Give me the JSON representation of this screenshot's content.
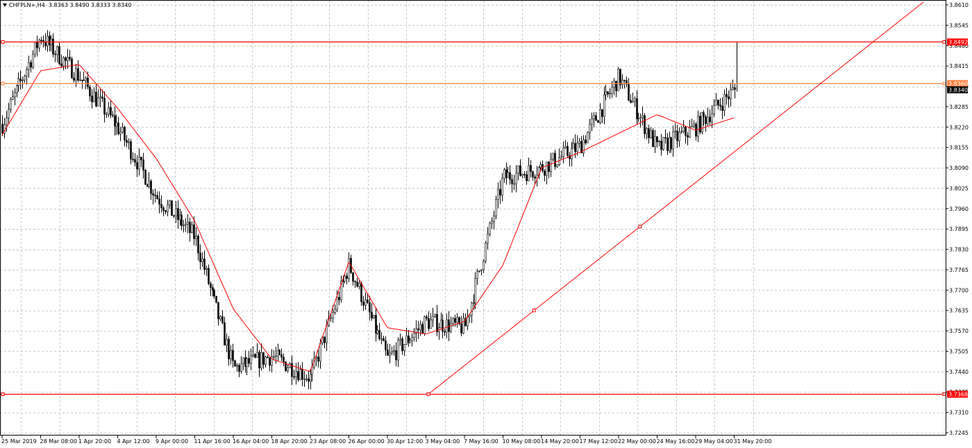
{
  "header": {
    "symbol": "CHFPLN+,H4",
    "ohlc": "3.8363 3.8490 3.8333 3.8340"
  },
  "colors": {
    "background": "#ffffff",
    "grid": "#c8c8c8",
    "candle": "#000000",
    "moving_average": "#ff0000",
    "level_line": "#ff0000",
    "level_line_orange": "#ff8040",
    "trendline": "#ff0000",
    "current_price_tag": "#000000"
  },
  "chart_data": {
    "type": "candlestick",
    "timeframe": "H4",
    "y_axis": {
      "range": [
        3.7245,
        3.861
      ],
      "ticks": [
        "3.8610",
        "3.8545",
        "3.8480",
        "3.8415",
        "3.8350",
        "3.8285",
        "3.8220",
        "3.8155",
        "3.8090",
        "3.8025",
        "3.7960",
        "3.7895",
        "3.7830",
        "3.7765",
        "3.7700",
        "3.7635",
        "3.7570",
        "3.7505",
        "3.7440",
        "3.7375",
        "3.7310",
        "3.7245"
      ]
    },
    "x_axis": {
      "labels": [
        "25 Mar 2019",
        "28 Mar 08:00",
        "1 Apr 20:00",
        "4 Apr 12:00",
        "9 Apr 00:00",
        "11 Apr 16:00",
        "16 Apr 04:00",
        "18 Apr 20:00",
        "23 Apr 08:00",
        "26 Apr 00:00",
        "30 Apr 12:00",
        "3 May 04:00",
        "7 May 16:00",
        "10 May 08:00",
        "14 May 20:00",
        "17 May 12:00",
        "22 May 00:00",
        "24 May 16:00",
        "29 May 04:00",
        "31 May 20:00"
      ]
    },
    "grid": true,
    "horizontal_levels": [
      {
        "price": 3.8492,
        "label": "3.8492",
        "color": "#ff0000"
      },
      {
        "price": 3.836,
        "label": "3.8360",
        "color": "#ff8040"
      },
      {
        "price": 3.7368,
        "label": "3.7368",
        "color": "#ff0000"
      }
    ],
    "current_price": {
      "price": 3.834,
      "label": "3.8340"
    },
    "trendline": {
      "from": {
        "date": "2 May 20:00",
        "price": 3.7368
      },
      "to": {
        "date": "after 31 May 20:00",
        "price": 3.861
      }
    },
    "moving_average_anchors": [
      {
        "date": "25 Mar 2019",
        "price": 3.8195
      },
      {
        "date": "28 Mar 08:00",
        "price": 3.84
      },
      {
        "date": "1 Apr 20:00",
        "price": 3.842
      },
      {
        "date": "4 Apr 12:00",
        "price": 3.828
      },
      {
        "date": "9 Apr 00:00",
        "price": 3.812
      },
      {
        "date": "11 Apr 16:00",
        "price": 3.792
      },
      {
        "date": "16 Apr 04:00",
        "price": 3.764
      },
      {
        "date": "18 Apr 20:00",
        "price": 3.748
      },
      {
        "date": "23 Apr 08:00",
        "price": 3.744
      },
      {
        "date": "26 Apr 00:00",
        "price": 3.779
      },
      {
        "date": "30 Apr 12:00",
        "price": 3.758
      },
      {
        "date": "3 May 04:00",
        "price": 3.756
      },
      {
        "date": "7 May 16:00",
        "price": 3.76
      },
      {
        "date": "10 May 08:00",
        "price": 3.778
      },
      {
        "date": "14 May 20:00",
        "price": 3.809
      },
      {
        "date": "17 May 12:00",
        "price": 3.814
      },
      {
        "date": "22 May 00:00",
        "price": 3.82
      },
      {
        "date": "24 May 16:00",
        "price": 3.826
      },
      {
        "date": "29 May 04:00",
        "price": 3.821
      },
      {
        "date": "31 May 20:00",
        "price": 3.825
      }
    ],
    "close_anchors": [
      {
        "date": "25 Mar 2019",
        "price": 3.823
      },
      {
        "date": "28 Mar 08:00",
        "price": 3.851
      },
      {
        "date": "1 Apr 20:00",
        "price": 3.838
      },
      {
        "date": "4 Apr 12:00",
        "price": 3.822
      },
      {
        "date": "9 Apr 00:00",
        "price": 3.8
      },
      {
        "date": "11 Apr 16:00",
        "price": 3.787
      },
      {
        "date": "16 Apr 04:00",
        "price": 3.745
      },
      {
        "date": "18 Apr 20:00",
        "price": 3.749
      },
      {
        "date": "23 Apr 08:00",
        "price": 3.742
      },
      {
        "date": "26 Apr 00:00",
        "price": 3.778
      },
      {
        "date": "30 Apr 12:00",
        "price": 3.748
      },
      {
        "date": "3 May 04:00",
        "price": 3.76
      },
      {
        "date": "7 May 16:00",
        "price": 3.758
      },
      {
        "date": "10 May 08:00",
        "price": 3.806
      },
      {
        "date": "14 May 20:00",
        "price": 3.809
      },
      {
        "date": "17 May 12:00",
        "price": 3.816
      },
      {
        "date": "22 May 00:00",
        "price": 3.838
      },
      {
        "date": "24 May 16:00",
        "price": 3.815
      },
      {
        "date": "29 May 04:00",
        "price": 3.822
      },
      {
        "date": "31 May 20:00",
        "price": 3.834
      }
    ]
  }
}
